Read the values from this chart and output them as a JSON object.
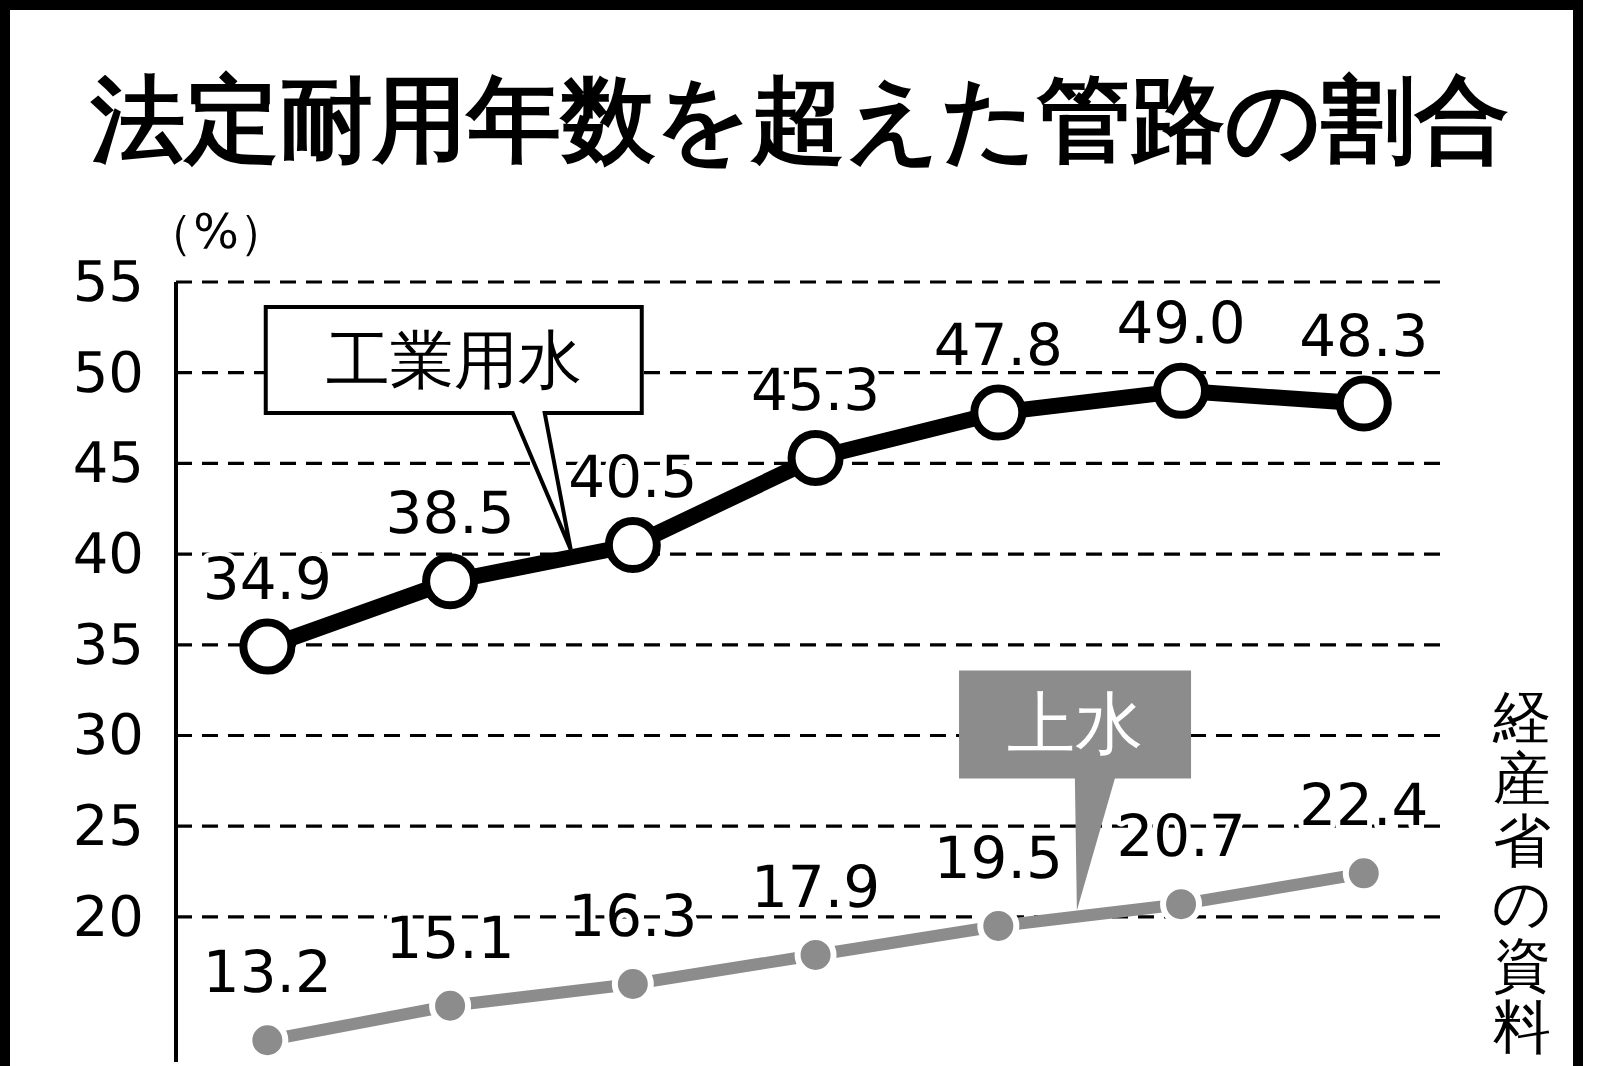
{
  "chart_data": {
    "type": "line",
    "title": "法定耐用年数を超えた管路の割合",
    "ylabel": "（%）",
    "categories": [
      null,
      null,
      null,
      null,
      null,
      null,
      null
    ],
    "series": [
      {
        "name": "工業用水",
        "color": "#000000",
        "values": [
          34.9,
          38.5,
          40.5,
          45.3,
          47.8,
          49.0,
          48.3
        ],
        "value_labels": [
          "34.9",
          "38.5",
          "40.5",
          "45.3",
          "47.8",
          "49.0",
          "48.3"
        ]
      },
      {
        "name": "上水",
        "color": "#8c8c8c",
        "values": [
          13.2,
          15.1,
          16.3,
          17.9,
          19.5,
          20.7,
          22.4
        ],
        "value_labels": [
          "13.2",
          "15.1",
          "16.3",
          "17.9",
          "19.5",
          "20.7",
          "22.4"
        ]
      }
    ],
    "ylim": [
      12,
      55
    ],
    "yticks": [
      20,
      25,
      30,
      35,
      40,
      45,
      50,
      55
    ],
    "grid": "y",
    "marker": "circle",
    "annotations": [
      "経産省の資料"
    ]
  }
}
